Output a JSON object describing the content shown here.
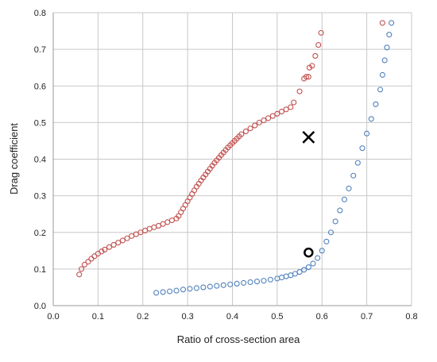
{
  "chart_data": {
    "type": "scatter",
    "xlabel": "Ratio of cross-section area",
    "ylabel": "Drag coefficient",
    "xlim": [
      0.0,
      0.8
    ],
    "ylim": [
      0.0,
      0.8
    ],
    "xticks": [
      "0.0",
      "0.1",
      "0.2",
      "0.3",
      "0.4",
      "0.5",
      "0.6",
      "0.7",
      "0.8"
    ],
    "yticks": [
      "0.0",
      "0.1",
      "0.2",
      "0.3",
      "0.4",
      "0.5",
      "0.6",
      "0.7",
      "0.8"
    ],
    "grid": true,
    "series": [
      {
        "marker": "open-circle",
        "color": "#c0504d",
        "x": [
          0.058,
          0.063,
          0.07,
          0.078,
          0.085,
          0.092,
          0.1,
          0.108,
          0.115,
          0.125,
          0.135,
          0.145,
          0.155,
          0.165,
          0.175,
          0.185,
          0.195,
          0.205,
          0.215,
          0.225,
          0.235,
          0.245,
          0.255,
          0.265,
          0.275,
          0.28,
          0.285,
          0.29,
          0.295,
          0.3,
          0.305,
          0.31,
          0.315,
          0.32,
          0.325,
          0.33,
          0.335,
          0.34,
          0.345,
          0.35,
          0.355,
          0.36,
          0.365,
          0.37,
          0.375,
          0.38,
          0.385,
          0.39,
          0.395,
          0.4,
          0.405,
          0.41,
          0.415,
          0.42,
          0.43,
          0.44,
          0.45,
          0.46,
          0.47,
          0.48,
          0.49,
          0.5,
          0.51,
          0.52,
          0.53,
          0.537,
          0.55,
          0.56,
          0.565,
          0.57,
          0.572,
          0.578,
          0.585,
          0.592,
          0.598,
          0.735
        ],
        "y": [
          0.085,
          0.1,
          0.112,
          0.12,
          0.128,
          0.135,
          0.142,
          0.148,
          0.153,
          0.16,
          0.166,
          0.172,
          0.178,
          0.184,
          0.19,
          0.195,
          0.2,
          0.205,
          0.21,
          0.214,
          0.218,
          0.223,
          0.228,
          0.233,
          0.238,
          0.245,
          0.255,
          0.265,
          0.275,
          0.285,
          0.295,
          0.305,
          0.315,
          0.325,
          0.333,
          0.342,
          0.35,
          0.358,
          0.366,
          0.374,
          0.382,
          0.39,
          0.397,
          0.404,
          0.411,
          0.418,
          0.425,
          0.432,
          0.438,
          0.444,
          0.45,
          0.456,
          0.462,
          0.468,
          0.476,
          0.484,
          0.492,
          0.5,
          0.506,
          0.512,
          0.518,
          0.524,
          0.53,
          0.536,
          0.542,
          0.555,
          0.585,
          0.62,
          0.625,
          0.625,
          0.65,
          0.655,
          0.682,
          0.712,
          0.745,
          0.772
        ]
      },
      {
        "marker": "open-circle",
        "color": "#4f81bd",
        "x": [
          0.23,
          0.245,
          0.26,
          0.275,
          0.29,
          0.305,
          0.32,
          0.335,
          0.35,
          0.365,
          0.38,
          0.395,
          0.41,
          0.425,
          0.44,
          0.455,
          0.47,
          0.485,
          0.5,
          0.51,
          0.52,
          0.53,
          0.54,
          0.55,
          0.56,
          0.57,
          0.58,
          0.59,
          0.6,
          0.61,
          0.62,
          0.63,
          0.64,
          0.65,
          0.66,
          0.67,
          0.68,
          0.69,
          0.7,
          0.71,
          0.72,
          0.73,
          0.735,
          0.74,
          0.745,
          0.75,
          0.755
        ],
        "y": [
          0.035,
          0.037,
          0.039,
          0.041,
          0.044,
          0.046,
          0.048,
          0.05,
          0.052,
          0.054,
          0.056,
          0.058,
          0.06,
          0.062,
          0.064,
          0.066,
          0.068,
          0.071,
          0.074,
          0.077,
          0.08,
          0.083,
          0.087,
          0.092,
          0.098,
          0.105,
          0.115,
          0.13,
          0.15,
          0.175,
          0.2,
          0.23,
          0.26,
          0.29,
          0.32,
          0.355,
          0.39,
          0.43,
          0.47,
          0.51,
          0.55,
          0.59,
          0.63,
          0.67,
          0.705,
          0.74,
          0.772
        ]
      }
    ],
    "annotations": [
      {
        "marker": "x",
        "color": "#000000",
        "x": 0.57,
        "y": 0.46
      },
      {
        "marker": "bold-open-circle",
        "color": "#000000",
        "x": 0.57,
        "y": 0.145
      }
    ]
  }
}
